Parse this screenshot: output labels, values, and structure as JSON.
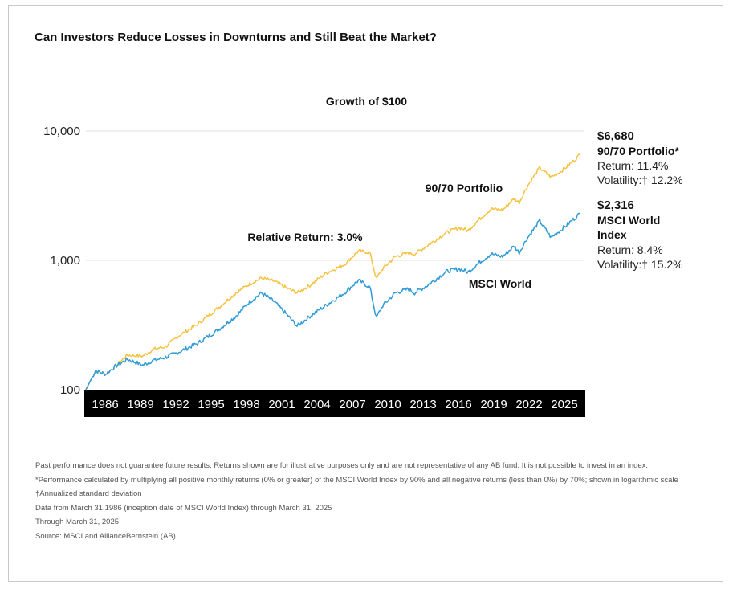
{
  "title": "Can Investors Reduce Losses in Downturns and Still Beat the Market?",
  "subtitle": "Growth of $100",
  "chart_data": {
    "type": "line",
    "title": "Growth of $100",
    "y_scale": "log",
    "ylim": [
      100,
      10000
    ],
    "y_ticks": [
      {
        "value": 10000,
        "label": "10,000"
      },
      {
        "value": 1000,
        "label": "1,000"
      },
      {
        "value": 100,
        "label": "100"
      }
    ],
    "xlim": [
      1986.25,
      2025.25
    ],
    "x_ticks": [
      "1986",
      "1989",
      "1992",
      "1995",
      "1998",
      "2001",
      "2004",
      "2007",
      "2010",
      "2013",
      "2016",
      "2019",
      "2022",
      "2025"
    ],
    "grid": true,
    "series": [
      {
        "name": "90/70 Portfolio",
        "color": "#f5c242",
        "points": [
          [
            1986.25,
            100
          ],
          [
            1987.0,
            140
          ],
          [
            1987.8,
            132
          ],
          [
            1988.5,
            150
          ],
          [
            1989.5,
            185
          ],
          [
            1990.7,
            182
          ],
          [
            1991.5,
            205
          ],
          [
            1992.5,
            215
          ],
          [
            1993.5,
            260
          ],
          [
            1995.0,
            320
          ],
          [
            1996.5,
            420
          ],
          [
            1998.0,
            560
          ],
          [
            1999.0,
            650
          ],
          [
            2000.0,
            730
          ],
          [
            2001.0,
            690
          ],
          [
            2002.0,
            610
          ],
          [
            2002.8,
            560
          ],
          [
            2003.8,
            640
          ],
          [
            2005.0,
            790
          ],
          [
            2006.5,
            930
          ],
          [
            2007.6,
            1180
          ],
          [
            2008.5,
            1150
          ],
          [
            2009.0,
            720
          ],
          [
            2009.5,
            860
          ],
          [
            2010.5,
            1070
          ],
          [
            2011.5,
            1140
          ],
          [
            2012.0,
            1120
          ],
          [
            2013.0,
            1300
          ],
          [
            2014.5,
            1640
          ],
          [
            2015.5,
            1790
          ],
          [
            2016.2,
            1700
          ],
          [
            2017.0,
            2050
          ],
          [
            2018.0,
            2500
          ],
          [
            2018.9,
            2450
          ],
          [
            2019.8,
            3000
          ],
          [
            2020.2,
            2800
          ],
          [
            2020.8,
            3700
          ],
          [
            2021.8,
            5200
          ],
          [
            2022.7,
            4400
          ],
          [
            2023.5,
            4900
          ],
          [
            2024.5,
            5900
          ],
          [
            2025.0,
            6680
          ]
        ],
        "end_value_label": "$6,680",
        "end_name_label": "90/70 Portfolio*",
        "stats": [
          "Return: 11.4%",
          "Volatility:† 12.2%"
        ],
        "inline_label": "90/70 Portfolio"
      },
      {
        "name": "MSCI World",
        "color": "#2e9bd6",
        "points": [
          [
            1986.25,
            100
          ],
          [
            1987.0,
            140
          ],
          [
            1987.8,
            132
          ],
          [
            1988.5,
            150
          ],
          [
            1989.5,
            172
          ],
          [
            1990.7,
            155
          ],
          [
            1991.5,
            168
          ],
          [
            1992.5,
            178
          ],
          [
            1993.5,
            195
          ],
          [
            1995.0,
            228
          ],
          [
            1996.5,
            285
          ],
          [
            1998.0,
            370
          ],
          [
            1999.0,
            470
          ],
          [
            2000.0,
            560
          ],
          [
            2001.0,
            480
          ],
          [
            2002.0,
            380
          ],
          [
            2002.8,
            310
          ],
          [
            2003.8,
            370
          ],
          [
            2005.0,
            445
          ],
          [
            2006.5,
            560
          ],
          [
            2007.6,
            700
          ],
          [
            2008.5,
            620
          ],
          [
            2009.0,
            360
          ],
          [
            2009.5,
            445
          ],
          [
            2010.5,
            560
          ],
          [
            2011.5,
            600
          ],
          [
            2012.0,
            560
          ],
          [
            2013.0,
            640
          ],
          [
            2014.5,
            820
          ],
          [
            2015.5,
            860
          ],
          [
            2016.2,
            810
          ],
          [
            2017.0,
            950
          ],
          [
            2018.0,
            1120
          ],
          [
            2018.9,
            1070
          ],
          [
            2019.8,
            1290
          ],
          [
            2020.2,
            1150
          ],
          [
            2020.8,
            1470
          ],
          [
            2021.8,
            2020
          ],
          [
            2022.7,
            1500
          ],
          [
            2023.5,
            1730
          ],
          [
            2024.5,
            2100
          ],
          [
            2025.0,
            2316
          ]
        ],
        "end_value_label": "$2,316",
        "end_name_label": "MSCI World Index",
        "stats": [
          "Return: 8.4%",
          "Volatility:† 15.2%"
        ],
        "inline_label": "MSCI World"
      }
    ],
    "annotation": "Relative Return: 3.0%"
  },
  "footnotes": [
    "Past performance does not guarantee future results. Returns shown are for illustrative purposes only and are not representative of any AB fund. It is not possible to invest in an index.",
    "*Performance calculated by multiplying all positive monthly returns (0% or greater) of the MSCI World Index by 90% and all negative returns (less than 0%) by 70%; shown in logarithmic scale",
    "†Annualized standard deviation",
    "Data from March 31,1986 (inception date of MSCI World Index) through March 31, 2025",
    "Through March 31, 2025",
    "Source: MSCI and AllianceBernstein (AB)"
  ]
}
